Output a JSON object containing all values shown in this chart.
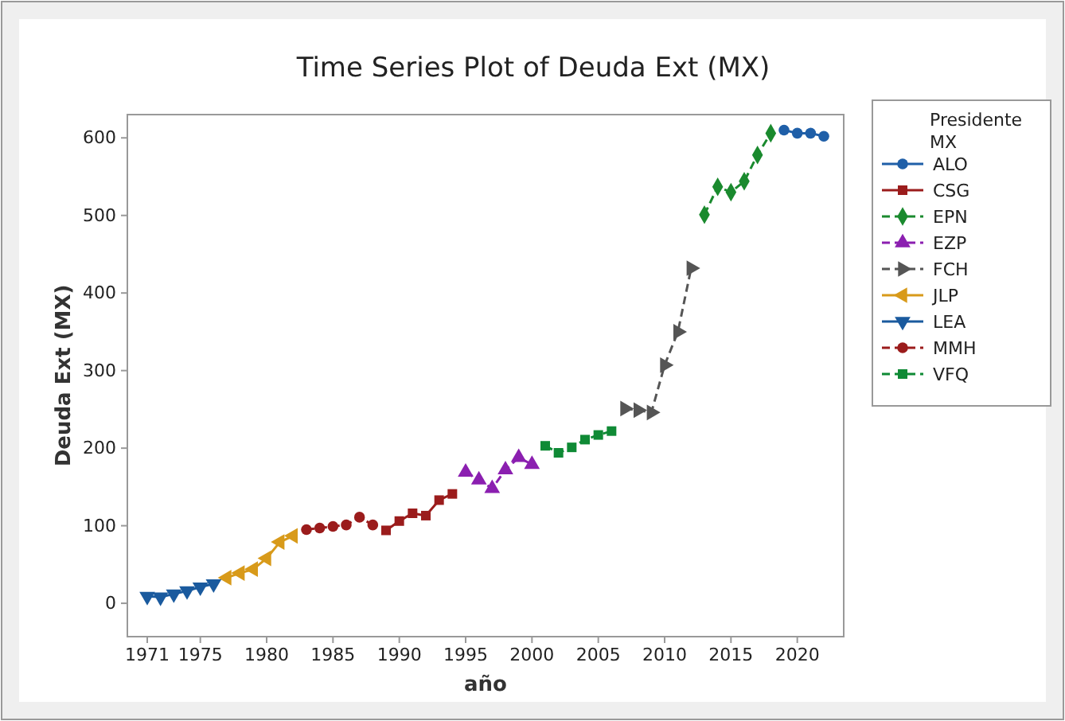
{
  "chart_data": {
    "type": "line",
    "title": "Time Series Plot of Deuda Ext (MX)",
    "xlabel": "año",
    "ylabel": "Deuda Ext (MX)",
    "legend_title": "Presidente MX",
    "legend": "right",
    "grid": false,
    "xlim": [
      1969.5,
      2023.5
    ],
    "xticks": [
      1971,
      1975,
      1980,
      1985,
      1990,
      1995,
      2000,
      2005,
      2010,
      2015,
      2020
    ],
    "ylim": [
      -43,
      630
    ],
    "yticks": [
      0,
      100,
      200,
      300,
      400,
      500,
      600
    ],
    "series": [
      {
        "name": "ALO",
        "color": "#1f5fa8",
        "marker": "circle",
        "line_style": "solid",
        "x": [
          2019,
          2020,
          2021,
          2022
        ],
        "values": [
          610,
          606,
          606,
          602
        ]
      },
      {
        "name": "CSG",
        "color": "#9b1c1c",
        "marker": "square",
        "line_style": "solid",
        "x": [
          1989,
          1990,
          1991,
          1992,
          1993,
          1994
        ],
        "values": [
          94,
          106,
          116,
          113,
          133,
          141
        ]
      },
      {
        "name": "EPN",
        "color": "#1a8a2e",
        "marker": "diamond",
        "line_style": "dashed",
        "x": [
          2013,
          2014,
          2015,
          2016,
          2017,
          2018
        ],
        "values": [
          501,
          537,
          530,
          544,
          578,
          606
        ]
      },
      {
        "name": "EZP",
        "color": "#8b1fb0",
        "marker": "triangle",
        "line_style": "dashed",
        "x": [
          1995,
          1996,
          1997,
          1998,
          1999,
          2000
        ],
        "values": [
          169,
          159,
          148,
          172,
          188,
          179
        ]
      },
      {
        "name": "FCH",
        "color": "#555555",
        "marker": "triangle-right",
        "line_style": "dashed",
        "x": [
          2007,
          2008,
          2009,
          2010,
          2011,
          2012
        ],
        "values": [
          251,
          249,
          246,
          307,
          350,
          432
        ]
      },
      {
        "name": "JLP",
        "color": "#d89a1a",
        "marker": "triangle-left",
        "line_style": "solid",
        "x": [
          1977,
          1978,
          1979,
          1980,
          1981,
          1982
        ],
        "values": [
          33,
          39,
          44,
          58,
          79,
          87
        ]
      },
      {
        "name": "LEA",
        "color": "#1a5a9e",
        "marker": "triangle-down",
        "line_style": "solid",
        "x": [
          1971,
          1972,
          1973,
          1974,
          1975,
          1976
        ],
        "values": [
          9,
          8,
          12,
          16,
          21,
          25
        ]
      },
      {
        "name": "MMH",
        "color": "#9b1c1c",
        "marker": "circle",
        "line_style": "dashed",
        "x": [
          1983,
          1984,
          1985,
          1986,
          1987,
          1988
        ],
        "values": [
          95,
          97,
          99,
          101,
          111,
          101
        ]
      },
      {
        "name": "VFQ",
        "color": "#0f8a35",
        "marker": "square",
        "line_style": "dashed",
        "x": [
          2001,
          2002,
          2003,
          2004,
          2005,
          2006
        ],
        "values": [
          203,
          194,
          201,
          211,
          217,
          222
        ]
      }
    ]
  }
}
